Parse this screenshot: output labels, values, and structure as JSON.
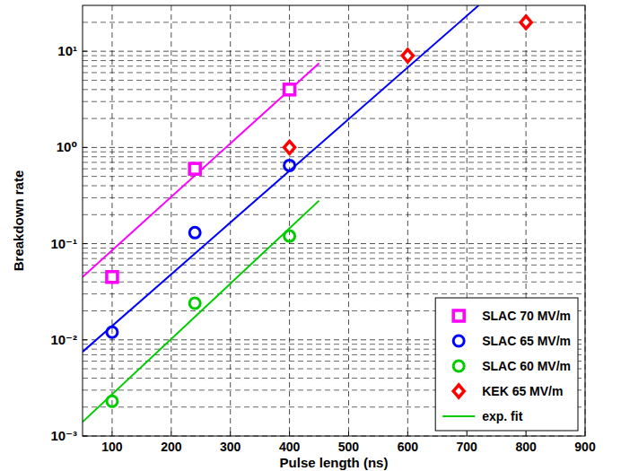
{
  "chart_data": {
    "type": "scatter",
    "x_label": "Pulse length (ns)",
    "y_label": "Breakdown rate",
    "log": "y",
    "grid": true,
    "legend": "lower right",
    "xlim": [
      50,
      900
    ],
    "xticks": [
      100,
      200,
      300,
      400,
      500,
      600,
      700,
      800,
      900
    ],
    "ylim": [
      0.001,
      30
    ],
    "yticks": [
      {
        "value": 0.001,
        "label": "10⁻³"
      },
      {
        "value": 0.01,
        "label": "10⁻²"
      },
      {
        "value": 0.1,
        "label": "10⁻¹"
      },
      {
        "value": 1,
        "label": "10⁰"
      },
      {
        "value": 10,
        "label": "10¹"
      }
    ],
    "series": [
      {
        "name": "SLAC 70 MV/m",
        "type": "scatter",
        "marker": "square",
        "color": "#ff00ff",
        "x": [
          100,
          240,
          400
        ],
        "values": [
          0.045,
          0.6,
          4
        ]
      },
      {
        "name": "SLAC 65 MV/m",
        "type": "scatter",
        "marker": "circle",
        "color": "#0000ff",
        "x": [
          100,
          240,
          400
        ],
        "values": [
          0.012,
          0.13,
          0.65
        ]
      },
      {
        "name": "SLAC 60 MV/m",
        "type": "scatter",
        "marker": "circle",
        "color": "#00cc00",
        "x": [
          100,
          240,
          400
        ],
        "values": [
          0.0023,
          0.024,
          0.12
        ]
      },
      {
        "name": "KEK 65 MV/m",
        "type": "scatter",
        "marker": "diamond",
        "color": "#ff0000",
        "x": [
          400,
          600,
          800
        ],
        "values": [
          1.0,
          9,
          20
        ]
      },
      {
        "type": "line",
        "color": "#ff00ff",
        "x": [
          50,
          450
        ],
        "values": [
          0.045,
          7.5
        ]
      },
      {
        "type": "line",
        "color": "#0000ff",
        "x": [
          50,
          720
        ],
        "values": [
          0.0075,
          30
        ]
      },
      {
        "name": "exp. fit",
        "type": "line",
        "color": "#00cc00",
        "x": [
          50,
          450
        ],
        "values": [
          0.0014,
          0.28
        ]
      }
    ]
  }
}
